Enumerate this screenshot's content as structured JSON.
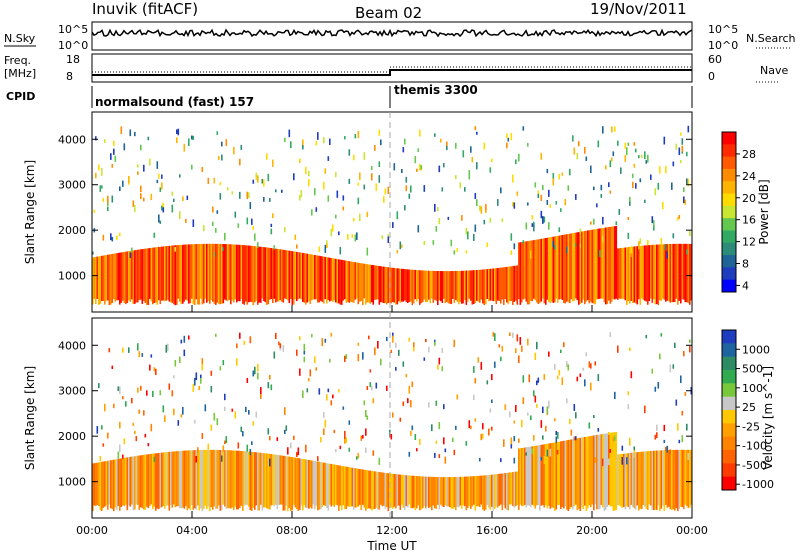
{
  "header": {
    "station": "Inuvik (fitACF)",
    "beam": "Beam 02",
    "date": "19/Nov/2011"
  },
  "top_panels": {
    "nsky_label": "N.Sky",
    "nsky_ticks": [
      "10^5",
      "10^0"
    ],
    "nsearch_label": "N.Search",
    "nsearch_ticks": [
      "10^5",
      "10^0"
    ],
    "freq_label_1": "Freq.",
    "freq_label_2": "[MHz]",
    "freq_ticks": [
      "18",
      "8"
    ],
    "nave_label": "Nave",
    "nave_ticks": [
      "60",
      "0"
    ],
    "cpid_label": "CPID",
    "cpid_segments": [
      {
        "name": "normalsound (fast) 157",
        "start_hour": 0,
        "end_hour": 12
      },
      {
        "name": "themis 3300",
        "start_hour": 12,
        "end_hour": 24
      }
    ]
  },
  "chart_data": [
    {
      "type": "heatmap",
      "panel": "power",
      "ylabel": "Slant Range [km]",
      "xlabel": "",
      "ylim": [
        200,
        4600
      ],
      "xlim_hours": [
        0,
        24
      ],
      "yticks": [
        "1000",
        "2000",
        "3000",
        "4000"
      ],
      "colorbar": {
        "label": "Power [dB]",
        "ticks": [
          "28",
          "24",
          "20",
          "16",
          "12",
          "8",
          "4"
        ],
        "colors": [
          "#ff0000",
          "#ff2a00",
          "#ff5a00",
          "#ff8c00",
          "#ffb400",
          "#ffdc00",
          "#c8e632",
          "#64c850",
          "#32aa64",
          "#2d8c78",
          "#1e6496",
          "#1e3cbe",
          "#0000ff"
        ]
      }
    },
    {
      "type": "heatmap",
      "panel": "velocity",
      "ylabel": "Slant Range [km]",
      "xlabel": "Time UT",
      "ylim": [
        200,
        4600
      ],
      "xlim_hours": [
        0,
        24
      ],
      "yticks": [
        "1000",
        "2000",
        "3000",
        "4000"
      ],
      "xticks": [
        "00:00",
        "04:00",
        "08:00",
        "12:00",
        "16:00",
        "20:00",
        "00:00"
      ],
      "colorbar": {
        "label": "Velocity [m s^-1]",
        "ticks": [
          "1000",
          "500",
          "100",
          "25",
          "-25",
          "-100",
          "-500",
          "-1000"
        ],
        "colors": [
          "#1e3cbe",
          "#1e64a0",
          "#2d8c64",
          "#32aa50",
          "#78c83c",
          "#c8c8c8",
          "#ffc800",
          "#ffa000",
          "#ff8200",
          "#ff6400",
          "#ff3c00",
          "#ff0000"
        ]
      }
    }
  ]
}
